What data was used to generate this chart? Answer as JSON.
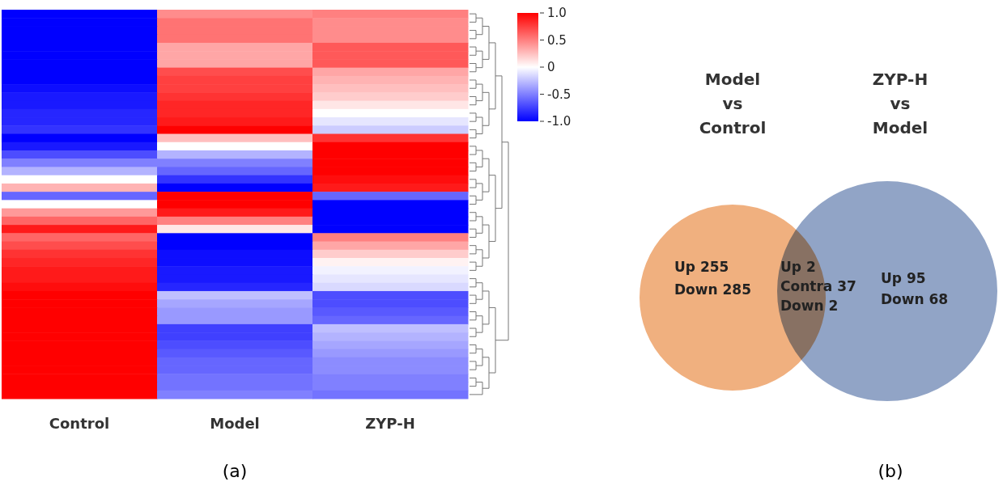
{
  "chart_data": [
    {
      "type": "heatmap",
      "categories": [
        "Control",
        "Model",
        "ZYP-H"
      ],
      "y_categories": [
        null,
        null,
        null,
        null,
        null,
        null,
        null,
        null,
        null,
        null,
        null,
        null,
        null,
        null,
        null,
        null,
        null,
        null,
        null,
        null,
        null,
        null,
        null,
        null,
        null,
        null,
        null,
        null,
        null,
        null,
        null,
        null,
        null,
        null,
        null,
        null,
        null,
        null,
        null,
        null,
        null,
        null,
        null,
        null,
        null,
        null,
        null
      ],
      "cells": [
        [
          -1,
          0.45,
          0.5
        ],
        [
          -1,
          0.55,
          0.45
        ],
        [
          -1,
          0.55,
          0.45
        ],
        [
          -1,
          0.55,
          0.45
        ],
        [
          -1,
          0.35,
          0.65
        ],
        [
          -1,
          0.35,
          0.65
        ],
        [
          -1,
          0.35,
          0.65
        ],
        [
          -1,
          0.7,
          0.35
        ],
        [
          -1,
          0.75,
          0.3
        ],
        [
          -0.95,
          0.75,
          0.25
        ],
        [
          -0.9,
          0.8,
          0.2
        ],
        [
          -0.9,
          0.85,
          0.1
        ],
        [
          -0.85,
          0.85,
          0
        ],
        [
          -0.85,
          0.9,
          -0.1
        ],
        [
          -0.8,
          1,
          -0.2
        ],
        [
          -1,
          0.25,
          0.8
        ],
        [
          -0.9,
          0,
          1
        ],
        [
          -0.7,
          -0.3,
          1
        ],
        [
          -0.5,
          -0.5,
          1
        ],
        [
          -0.3,
          -0.6,
          1
        ],
        [
          0,
          -0.8,
          0.95
        ],
        [
          0.3,
          -1,
          0.9
        ],
        [
          -0.6,
          1,
          -0.6
        ],
        [
          0,
          1,
          -1
        ],
        [
          0.4,
          0.9,
          -1
        ],
        [
          0.6,
          0.5,
          -1
        ],
        [
          0.9,
          0.1,
          -1
        ],
        [
          0.6,
          -1,
          0.5
        ],
        [
          0.7,
          -1,
          0.35
        ],
        [
          0.8,
          -0.95,
          0.2
        ],
        [
          0.85,
          -0.95,
          0.05
        ],
        [
          0.9,
          -0.9,
          -0.05
        ],
        [
          0.9,
          -0.9,
          -0.1
        ],
        [
          0.95,
          -0.85,
          -0.15
        ],
        [
          1,
          -0.25,
          -0.7
        ],
        [
          1,
          -0.35,
          -0.7
        ],
        [
          1,
          -0.4,
          -0.65
        ],
        [
          1,
          -0.4,
          -0.6
        ],
        [
          1,
          -0.75,
          -0.25
        ],
        [
          1,
          -0.75,
          -0.3
        ],
        [
          1,
          -0.7,
          -0.35
        ],
        [
          1,
          -0.65,
          -0.4
        ],
        [
          1,
          -0.6,
          -0.45
        ],
        [
          1,
          -0.6,
          -0.45
        ],
        [
          1,
          -0.55,
          -0.5
        ],
        [
          1,
          -0.55,
          -0.5
        ],
        [
          1,
          -0.5,
          -0.55
        ]
      ],
      "clim": [
        -1,
        1
      ],
      "cticks": [
        {
          "value": 1,
          "label": "1.0"
        },
        {
          "value": 0.5,
          "label": "0.5"
        },
        0,
        {
          "value": -0.5,
          "label": "-0.5"
        },
        {
          "value": -1,
          "label": "-1.0"
        }
      ],
      "annotations": [
        "(a)"
      ]
    },
    {
      "type": "other",
      "categories": [
        "Model vs Control",
        "ZYP-H vs Model"
      ],
      "colors": [
        "#f0b07f",
        "#91a4c6"
      ],
      "annotations": [
        "Up 255",
        "Down 285",
        "Up 2",
        "Contra 37",
        "Down 2",
        "Up 95",
        "Down 68",
        "(b)"
      ]
    }
  ]
}
